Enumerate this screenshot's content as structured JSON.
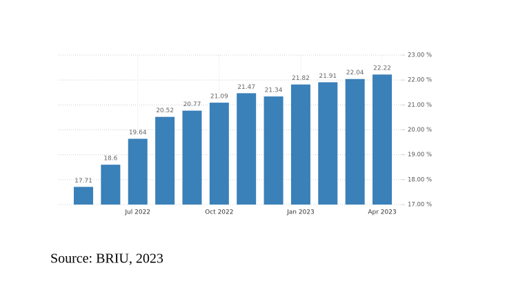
{
  "chart_data": {
    "type": "bar",
    "categories": [
      null,
      null,
      "Jul 2022",
      null,
      null,
      "Oct 2022",
      null,
      null,
      "Jan 2023",
      null,
      null,
      "Apr 2023"
    ],
    "values": [
      17.71,
      18.6,
      19.64,
      20.52,
      20.77,
      21.09,
      21.47,
      21.34,
      21.82,
      21.91,
      22.04,
      22.22
    ],
    "color": "#3a80b9",
    "ylim": [
      17,
      23
    ],
    "yticks": [
      {
        "value": 17,
        "label": "17.00 %"
      },
      {
        "value": 18,
        "label": "18.00 %"
      },
      {
        "value": 19,
        "label": "19.00 %"
      },
      {
        "value": 20,
        "label": "20.00 %"
      },
      {
        "value": 21,
        "label": "21.00 %"
      },
      {
        "value": 22,
        "label": "22.00 %"
      },
      {
        "value": 23,
        "label": "23.00 %"
      }
    ],
    "grid": true,
    "source": "Source: BRIU, 2023"
  }
}
